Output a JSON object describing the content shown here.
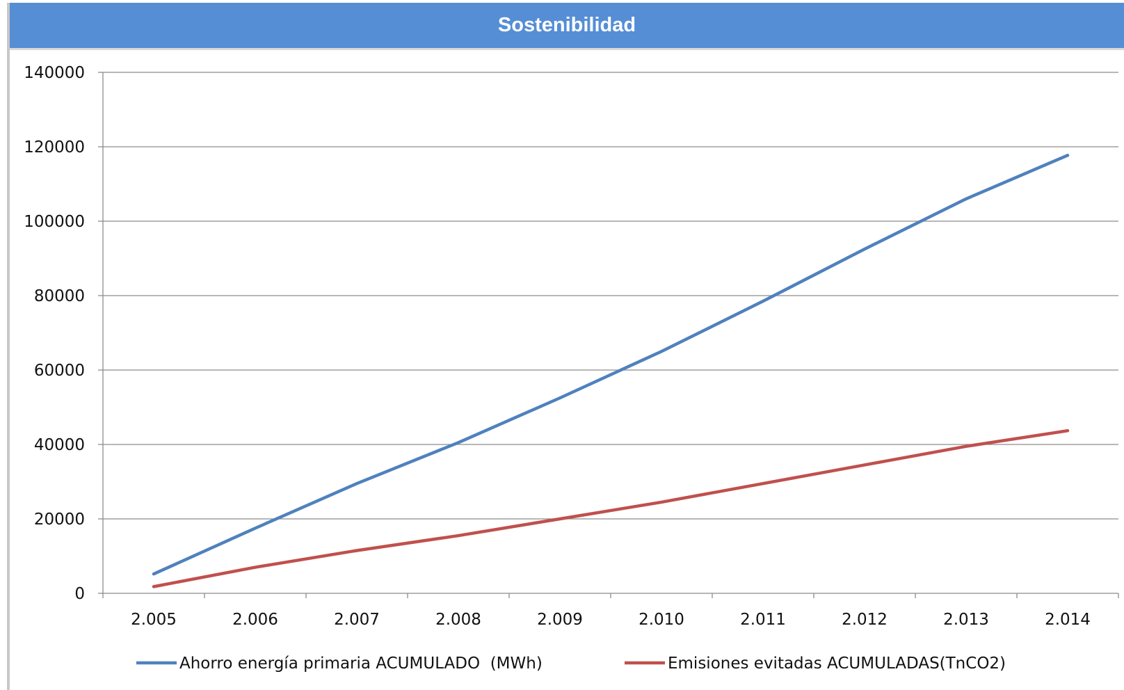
{
  "header": {
    "title": "Sostenibilidad"
  },
  "chart_data": {
    "type": "line",
    "title": "",
    "xlabel": "",
    "ylabel": "",
    "categories": [
      "2.005",
      "2.006",
      "2.007",
      "2.008",
      "2.009",
      "2.010",
      "2.011",
      "2.012",
      "2.013",
      "2.014"
    ],
    "y_ticks": [
      "0",
      "20000",
      "40000",
      "60000",
      "80000",
      "100000",
      "120000",
      "140000"
    ],
    "ylim": [
      0,
      140000
    ],
    "grid": true,
    "legend_position": "bottom",
    "series": [
      {
        "name": "Ahorro energía primaria ACUMULADO  (MWh)",
        "color": "#4f81bd",
        "values": [
          5200,
          17500,
          29500,
          40500,
          52500,
          65000,
          78500,
          92500,
          106000,
          117700
        ]
      },
      {
        "name": "Emisiones evitadas ACUMULADAS(TnCO2)",
        "color": "#c0504d",
        "values": [
          1800,
          7000,
          11500,
          15500,
          20000,
          24500,
          29500,
          34500,
          39500,
          43700
        ]
      }
    ]
  }
}
